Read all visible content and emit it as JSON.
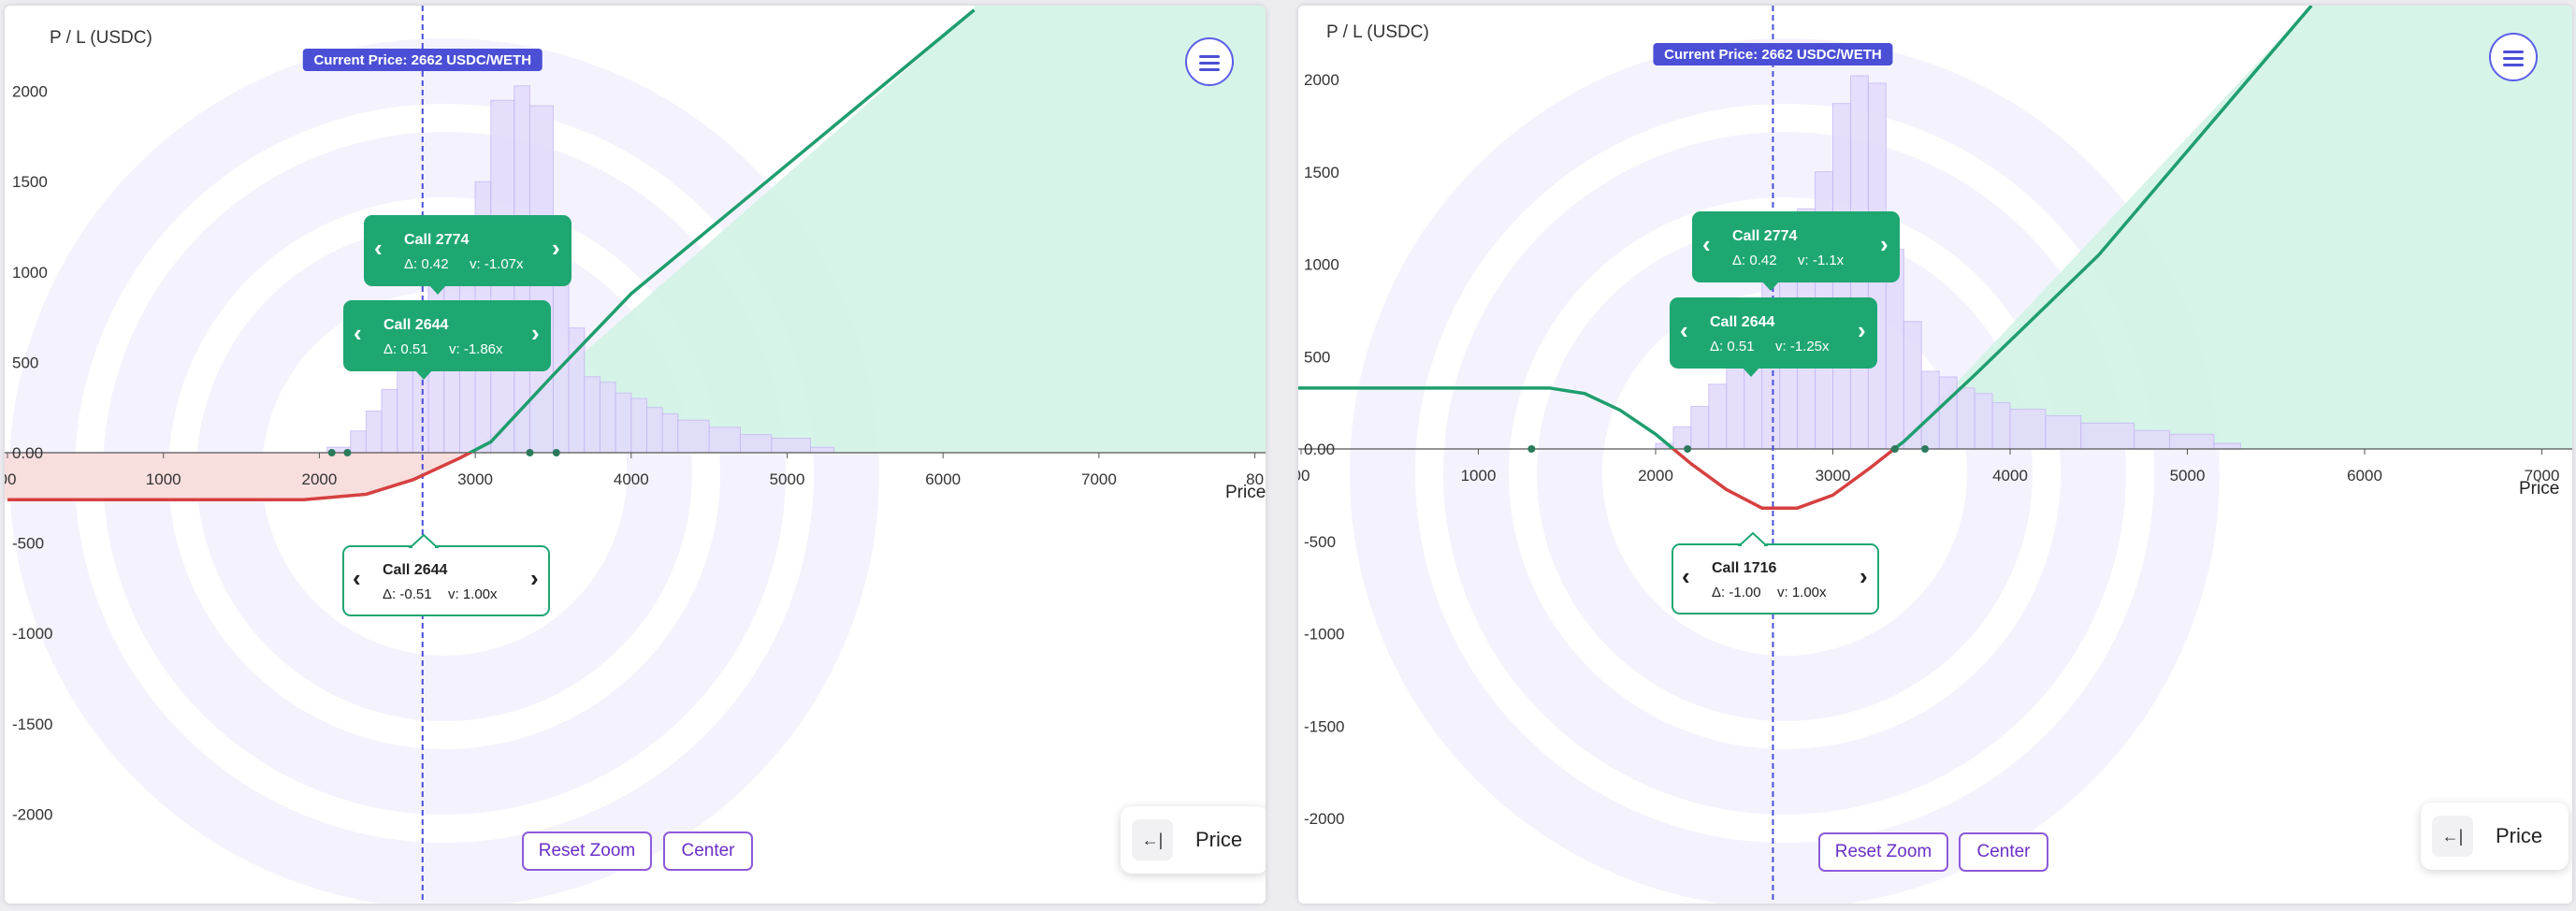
{
  "colors": {
    "accent": "#4b4fd6",
    "profit_line": "#1f9e6e",
    "loss_line": "#d64040",
    "profit_fill": "#d3f3e6",
    "loss_fill": "#f9dede",
    "histogram_fill": "#e2dafc",
    "histogram_stroke": "#c7b8f5",
    "tag_green": "#1fa772",
    "button_purple": "#8e5ad9"
  },
  "panels": [
    {
      "id": "left",
      "axis_title": "P / L (USDC)",
      "x_axis_label": "Price",
      "current_price_label": "Current Price: 2662 USDC/WETH",
      "current_price": 2662,
      "reset_zoom_label": "Reset Zoom",
      "center_label": "Center",
      "price_toggle_label": "Price",
      "price_toggle_icon": "arrow-to-bar-left-icon",
      "menu_icon": "hamburger-menu-icon",
      "options": [
        {
          "title": "Call 2774",
          "delta": "Δ: 0.42",
          "vol": "v: -1.07x",
          "style": "filled"
        },
        {
          "title": "Call 2644",
          "delta": "Δ: 0.51",
          "vol": "v: -1.86x",
          "style": "filled"
        },
        {
          "title": "Call 2644",
          "delta": "Δ: -0.51",
          "vol": "v: 1.00x",
          "style": "outline"
        }
      ]
    },
    {
      "id": "right",
      "axis_title": "P / L (USDC)",
      "x_axis_label": "Price",
      "current_price_label": "Current Price: 2662 USDC/WETH",
      "current_price": 2662,
      "reset_zoom_label": "Reset Zoom",
      "center_label": "Center",
      "price_toggle_label": "Price",
      "price_toggle_icon": "arrow-to-bar-left-icon",
      "menu_icon": "hamburger-menu-icon",
      "options": [
        {
          "title": "Call 2774",
          "delta": "Δ: 0.42",
          "vol": "v: -1.1x",
          "style": "filled"
        },
        {
          "title": "Call 2644",
          "delta": "Δ: 0.51",
          "vol": "v: -1.25x",
          "style": "filled"
        },
        {
          "title": "Call 1716",
          "delta": "Δ: -1.00",
          "vol": "v: 1.00x",
          "style": "outline"
        }
      ]
    }
  ],
  "chart_data": [
    {
      "type": "line",
      "ylabel": "P / L (USDC)",
      "xlabel": "Price",
      "x_ticks": [
        "00",
        "1000",
        "2000",
        "3000",
        "4000",
        "5000",
        "6000",
        "7000",
        "80"
      ],
      "y_ticks": [
        "2000",
        "1500",
        "1000",
        "500",
        "0.00",
        "-500",
        "-1000",
        "-1500",
        "-2000"
      ],
      "xlim": [
        0,
        8000
      ],
      "ylim": [
        -2250,
        2450
      ],
      "series": [
        {
          "points": [
            [
              0,
              -260
            ],
            [
              1900,
              -260
            ],
            [
              2300,
              -230
            ],
            [
              2600,
              -150
            ],
            [
              2900,
              -30
            ],
            [
              3100,
              60
            ],
            [
              3500,
              430
            ],
            [
              4000,
              880
            ],
            [
              6200,
              2450
            ]
          ]
        }
      ],
      "histogram": [
        {
          "x0": 2050,
          "x1": 2200,
          "y": 30
        },
        {
          "x0": 2200,
          "x1": 2300,
          "y": 120
        },
        {
          "x0": 2300,
          "x1": 2400,
          "y": 230
        },
        {
          "x0": 2400,
          "x1": 2500,
          "y": 350
        },
        {
          "x0": 2500,
          "x1": 2600,
          "y": 480
        },
        {
          "x0": 2600,
          "x1": 2700,
          "y": 700
        },
        {
          "x0": 2700,
          "x1": 2800,
          "y": 1000
        },
        {
          "x0": 2800,
          "x1": 2900,
          "y": 1180
        },
        {
          "x0": 2900,
          "x1": 3000,
          "y": 1290
        },
        {
          "x0": 3000,
          "x1": 3100,
          "y": 1500
        },
        {
          "x0": 3100,
          "x1": 3250,
          "y": 1950
        },
        {
          "x0": 3250,
          "x1": 3350,
          "y": 2030
        },
        {
          "x0": 3350,
          "x1": 3500,
          "y": 1920
        },
        {
          "x0": 3500,
          "x1": 3600,
          "y": 1080
        },
        {
          "x0": 3600,
          "x1": 3700,
          "y": 690
        },
        {
          "x0": 3700,
          "x1": 3800,
          "y": 420
        },
        {
          "x0": 3800,
          "x1": 3900,
          "y": 390
        },
        {
          "x0": 3900,
          "x1": 4000,
          "y": 330
        },
        {
          "x0": 4000,
          "x1": 4100,
          "y": 300
        },
        {
          "x0": 4100,
          "x1": 4200,
          "y": 250
        },
        {
          "x0": 4200,
          "x1": 4300,
          "y": 215
        },
        {
          "x0": 4300,
          "x1": 4500,
          "y": 180
        },
        {
          "x0": 4500,
          "x1": 4700,
          "y": 140
        },
        {
          "x0": 4700,
          "x1": 4900,
          "y": 100
        },
        {
          "x0": 4900,
          "x1": 5150,
          "y": 80
        },
        {
          "x0": 5150,
          "x1": 5300,
          "y": 30
        }
      ],
      "markers": [
        2080,
        2180,
        3350,
        3520
      ]
    },
    {
      "type": "line",
      "ylabel": "P / L (USDC)",
      "xlabel": "Price",
      "x_ticks": [
        "00",
        "1000",
        "2000",
        "3000",
        "4000",
        "5000",
        "6000",
        "7000"
      ],
      "y_ticks": [
        "2000",
        "1500",
        "1000",
        "500",
        "0.00",
        "-500",
        "-1000",
        "-1500",
        "-2000"
      ],
      "xlim": [
        0,
        7000
      ],
      "ylim": [
        -2300,
        2400
      ],
      "series": [
        {
          "points": [
            [
              -150,
              330
            ],
            [
              1400,
              330
            ],
            [
              1600,
              300
            ],
            [
              1800,
              210
            ],
            [
              2000,
              80
            ],
            [
              2200,
              -80
            ],
            [
              2400,
              -220
            ],
            [
              2600,
              -320
            ],
            [
              2800,
              -320
            ],
            [
              3000,
              -250
            ],
            [
              3200,
              -110
            ],
            [
              3400,
              40
            ],
            [
              3800,
              400
            ],
            [
              4500,
              1050
            ],
            [
              5700,
              2400
            ]
          ]
        }
      ],
      "histogram": [
        {
          "x0": 2000,
          "x1": 2100,
          "y": 30
        },
        {
          "x0": 2100,
          "x1": 2200,
          "y": 120
        },
        {
          "x0": 2200,
          "x1": 2300,
          "y": 230
        },
        {
          "x0": 2300,
          "x1": 2400,
          "y": 350
        },
        {
          "x0": 2400,
          "x1": 2500,
          "y": 480
        },
        {
          "x0": 2500,
          "x1": 2600,
          "y": 700
        },
        {
          "x0": 2600,
          "x1": 2700,
          "y": 980
        },
        {
          "x0": 2700,
          "x1": 2800,
          "y": 1150
        },
        {
          "x0": 2800,
          "x1": 2900,
          "y": 1300
        },
        {
          "x0": 2900,
          "x1": 3000,
          "y": 1500
        },
        {
          "x0": 3000,
          "x1": 3100,
          "y": 1870
        },
        {
          "x0": 3100,
          "x1": 3200,
          "y": 2020
        },
        {
          "x0": 3200,
          "x1": 3300,
          "y": 1980
        },
        {
          "x0": 3300,
          "x1": 3400,
          "y": 1080
        },
        {
          "x0": 3400,
          "x1": 3500,
          "y": 690
        },
        {
          "x0": 3500,
          "x1": 3600,
          "y": 420
        },
        {
          "x0": 3600,
          "x1": 3700,
          "y": 390
        },
        {
          "x0": 3700,
          "x1": 3800,
          "y": 330
        },
        {
          "x0": 3800,
          "x1": 3900,
          "y": 300
        },
        {
          "x0": 3900,
          "x1": 4000,
          "y": 250
        },
        {
          "x0": 4000,
          "x1": 4200,
          "y": 215
        },
        {
          "x0": 4200,
          "x1": 4400,
          "y": 180
        },
        {
          "x0": 4400,
          "x1": 4700,
          "y": 140
        },
        {
          "x0": 4700,
          "x1": 4900,
          "y": 100
        },
        {
          "x0": 4900,
          "x1": 5150,
          "y": 80
        },
        {
          "x0": 5150,
          "x1": 5300,
          "y": 30
        }
      ],
      "markers": [
        1300,
        2180,
        3350,
        3520
      ]
    }
  ]
}
